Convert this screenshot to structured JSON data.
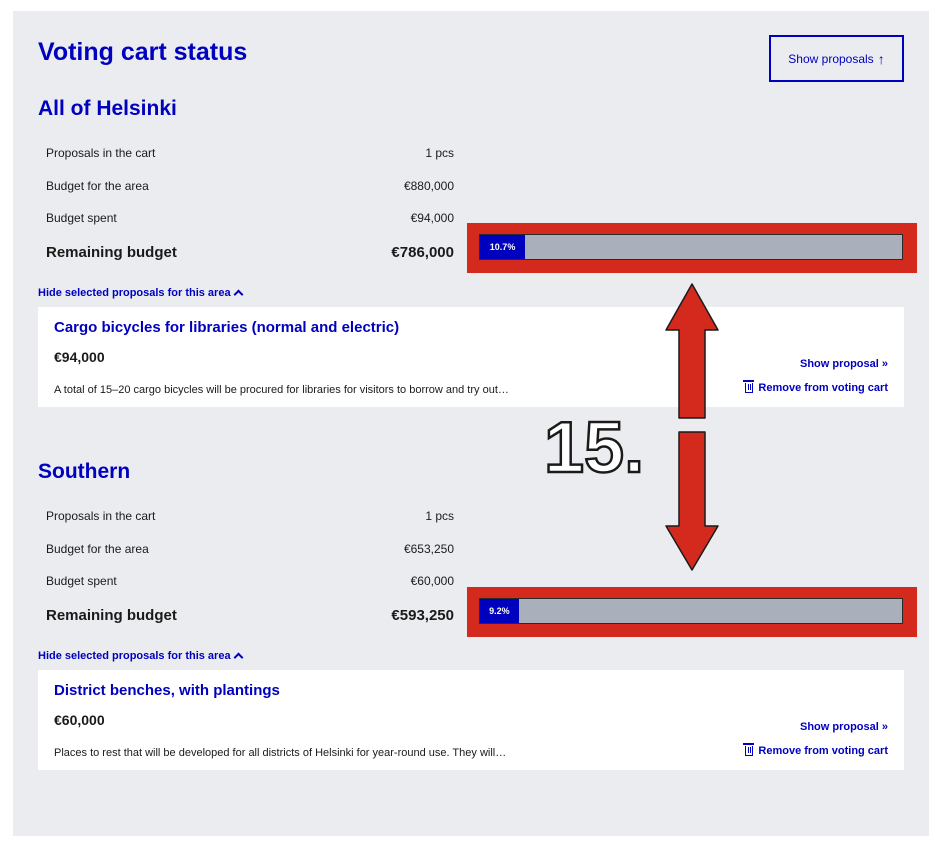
{
  "page": {
    "title": "Voting cart status",
    "show_proposals_label": "Show proposals",
    "show_proposals_arrow": "↑"
  },
  "areas": [
    {
      "name": "All of Helsinki",
      "stats": {
        "proposals_label": "Proposals in the cart",
        "proposals_value": "1 pcs",
        "budget_label": "Budget for the area",
        "budget_value": "€880,000",
        "spent_label": "Budget spent",
        "spent_value": "€94,000",
        "remaining_label": "Remaining budget",
        "remaining_value": "€786,000"
      },
      "progress_percent": 10.7,
      "progress_label": "10.7%",
      "toggle_label": "Hide selected proposals for this area",
      "proposal": {
        "title": "Cargo bicycles for libraries (normal and electric)",
        "price": "€94,000",
        "description": "A total of 15–20 cargo bicycles will be procured for libraries for visitors to borrow and try out…",
        "show_label": "Show proposal »",
        "remove_label": "Remove from voting cart"
      }
    },
    {
      "name": "Southern",
      "stats": {
        "proposals_label": "Proposals in the cart",
        "proposals_value": "1 pcs",
        "budget_label": "Budget for the area",
        "budget_value": "€653,250",
        "spent_label": "Budget spent",
        "spent_value": "€60,000",
        "remaining_label": "Remaining budget",
        "remaining_value": "€593,250"
      },
      "progress_percent": 9.2,
      "progress_label": "9.2%",
      "toggle_label": "Hide selected proposals for this area",
      "proposal": {
        "title": "District benches, with plantings",
        "price": "€60,000",
        "description": "Places to rest that will be developed for all districts of Helsinki for year-round use. They will…",
        "show_label": "Show proposal »",
        "remove_label": "Remove from voting cart"
      }
    }
  ],
  "annotation": {
    "number_label": "15.",
    "arrow_color": "#d42a1e"
  },
  "colors": {
    "accent": "#0000bf",
    "panel_bg": "#ebecf0",
    "bar_track": "#aab0bb",
    "highlight_red": "#d42a1e"
  }
}
